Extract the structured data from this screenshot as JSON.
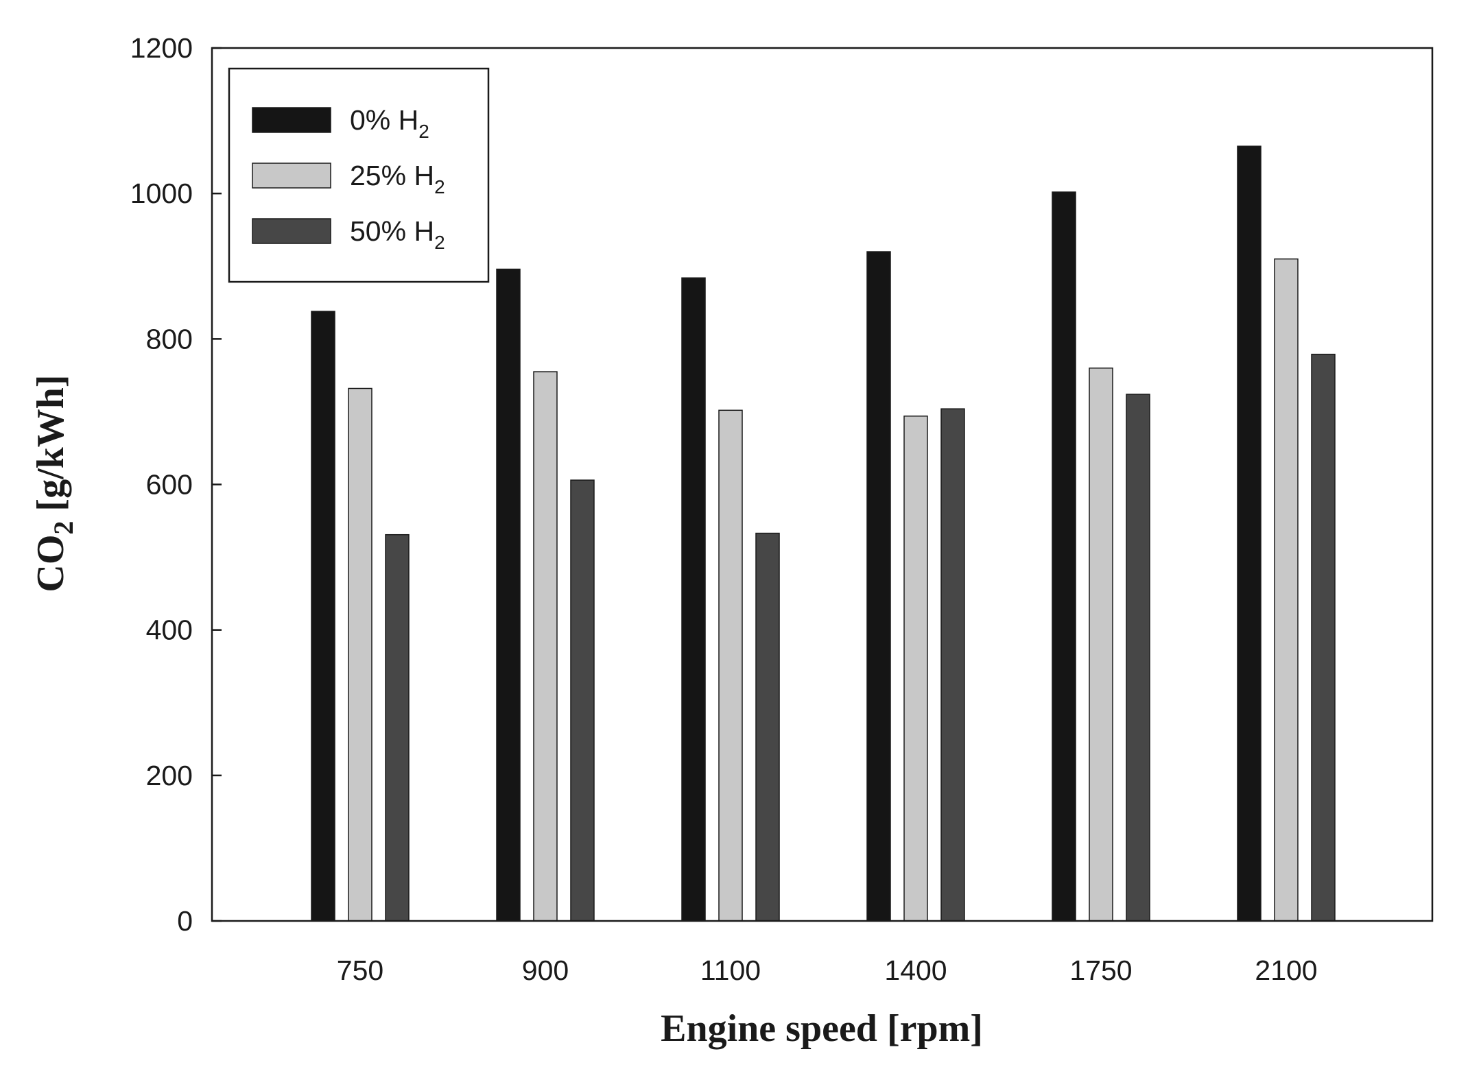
{
  "chart_data": {
    "type": "bar",
    "title": "",
    "xlabel": "Engine speed [rpm]",
    "ylabel": "CO2 [g/kWh]",
    "ylabel_parts": {
      "main": "CO",
      "sub": "2",
      "rest": " [g/kWh]"
    },
    "categories": [
      "750",
      "900",
      "1100",
      "1400",
      "1750",
      "2100"
    ],
    "ylim": [
      0,
      1200
    ],
    "yticks": [
      "0",
      "200",
      "400",
      "600",
      "800",
      "1000",
      "1200"
    ],
    "grid": false,
    "legend_position": "top-left",
    "series": [
      {
        "name": "0% H2",
        "label_main": "0% H",
        "label_sub": "2",
        "color": "#151515",
        "values": [
          838,
          896,
          884,
          920,
          1002,
          1065
        ]
      },
      {
        "name": "25% H2",
        "label_main": "25% H",
        "label_sub": "2",
        "color": "#c8c8c8",
        "values": [
          732,
          755,
          702,
          694,
          760,
          910
        ]
      },
      {
        "name": "50% H2",
        "label_main": "50% H",
        "label_sub": "2",
        "color": "#474747",
        "values": [
          531,
          606,
          533,
          704,
          724,
          779
        ]
      }
    ]
  }
}
